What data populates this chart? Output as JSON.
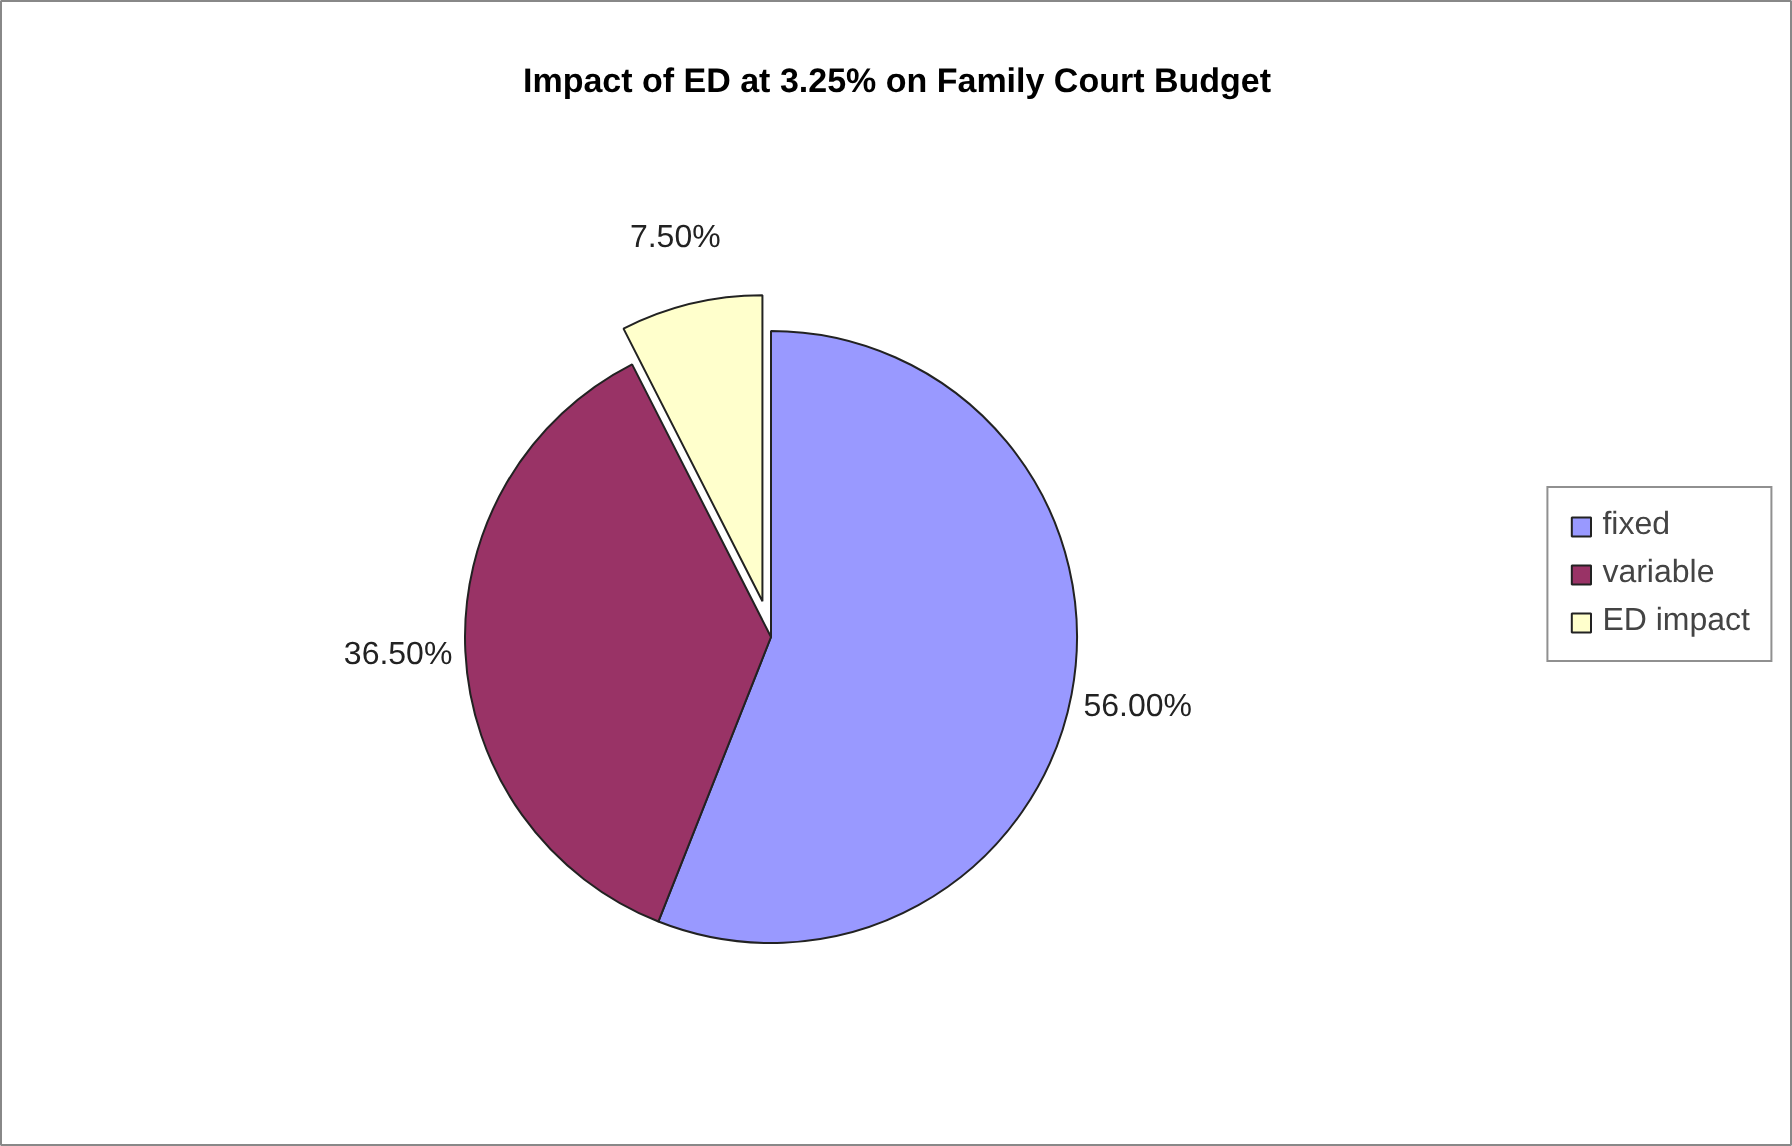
{
  "chart_data": {
    "type": "pie",
    "title": "Impact of ED at 3.25% on Family Court Budget",
    "categories": [
      "fixed",
      "variable",
      "ED impact"
    ],
    "values": [
      56.0,
      36.5,
      7.5
    ],
    "colors": [
      "#9999ff",
      "#993366",
      "#ffffcc"
    ],
    "value_labels": [
      "56.00%",
      "36.50%",
      "7.50%"
    ],
    "legend": "right"
  }
}
